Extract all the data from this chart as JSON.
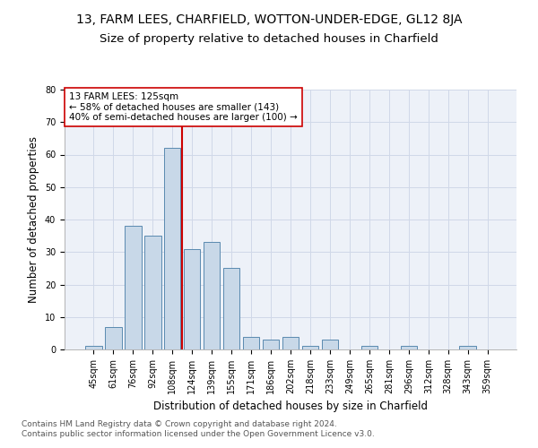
{
  "title": "13, FARM LEES, CHARFIELD, WOTTON-UNDER-EDGE, GL12 8JA",
  "subtitle": "Size of property relative to detached houses in Charfield",
  "xlabel": "Distribution of detached houses by size in Charfield",
  "ylabel": "Number of detached properties",
  "categories": [
    "45sqm",
    "61sqm",
    "76sqm",
    "92sqm",
    "108sqm",
    "124sqm",
    "139sqm",
    "155sqm",
    "171sqm",
    "186sqm",
    "202sqm",
    "218sqm",
    "233sqm",
    "249sqm",
    "265sqm",
    "281sqm",
    "296sqm",
    "312sqm",
    "328sqm",
    "343sqm",
    "359sqm"
  ],
  "values": [
    1,
    7,
    38,
    35,
    62,
    31,
    33,
    25,
    4,
    3,
    4,
    1,
    3,
    0,
    1,
    0,
    1,
    0,
    0,
    1,
    0
  ],
  "bar_color": "#c8d8e8",
  "bar_edge_color": "#5a8ab0",
  "vline_x": 4.5,
  "vline_color": "#cc0000",
  "annotation_text": "13 FARM LEES: 125sqm\n← 58% of detached houses are smaller (143)\n40% of semi-detached houses are larger (100) →",
  "annotation_box_color": "#ffffff",
  "annotation_box_edge": "#cc0000",
  "ylim": [
    0,
    80
  ],
  "yticks": [
    0,
    10,
    20,
    30,
    40,
    50,
    60,
    70,
    80
  ],
  "background_color": "#ffffff",
  "grid_color": "#d0d8e8",
  "footer1": "Contains HM Land Registry data © Crown copyright and database right 2024.",
  "footer2": "Contains public sector information licensed under the Open Government Licence v3.0.",
  "title_fontsize": 10,
  "subtitle_fontsize": 9.5,
  "axis_label_fontsize": 8.5,
  "tick_fontsize": 7,
  "footer_fontsize": 6.5,
  "annotation_fontsize": 7.5
}
